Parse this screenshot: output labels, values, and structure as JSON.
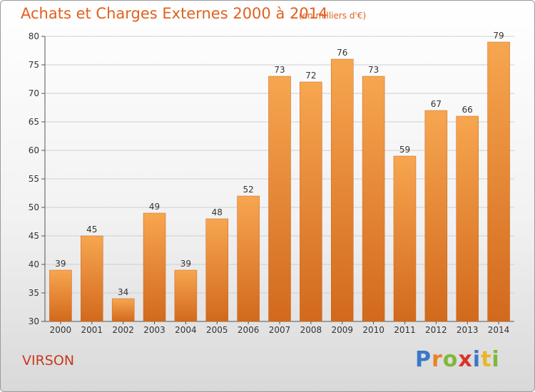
{
  "header": {
    "title": "Achats et Charges Externes 2000 à 2014",
    "subtitle": "(en milliers d'€)"
  },
  "footer": {
    "place": "VIRSON",
    "logo_text": "Proxiti"
  },
  "colors": {
    "bar_top": "#f7a650",
    "bar_bottom": "#d2691c",
    "title": "#e0601e",
    "place": "#c8391e"
  },
  "chart_data": {
    "type": "bar",
    "title": "Achats et Charges Externes 2000 à 2014",
    "subtitle": "(en milliers d'€)",
    "categories": [
      "2000",
      "2001",
      "2002",
      "2003",
      "2004",
      "2005",
      "2006",
      "2007",
      "2008",
      "2009",
      "2010",
      "2011",
      "2012",
      "2013",
      "2014"
    ],
    "values": [
      39,
      45,
      34,
      49,
      39,
      48,
      52,
      73,
      72,
      76,
      73,
      59,
      67,
      66,
      79
    ],
    "ylim": [
      30,
      80
    ],
    "yticks": [
      30,
      35,
      40,
      45,
      50,
      55,
      60,
      65,
      70,
      75,
      80
    ],
    "grid": true,
    "legend": "none"
  }
}
